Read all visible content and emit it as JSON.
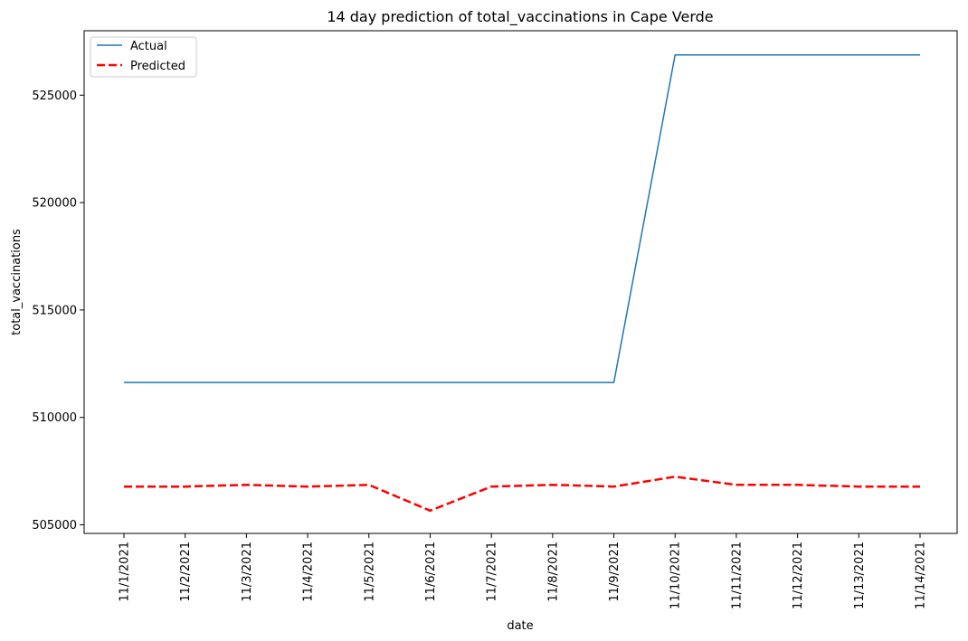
{
  "chart_data": {
    "type": "line",
    "title": "14 day prediction of total_vaccinations in Cape Verde",
    "xlabel": "date",
    "ylabel": "total_vaccinations",
    "categories": [
      "11/1/2021",
      "11/2/2021",
      "11/3/2021",
      "11/4/2021",
      "11/5/2021",
      "11/6/2021",
      "11/7/2021",
      "11/8/2021",
      "11/9/2021",
      "11/10/2021",
      "11/11/2021",
      "11/12/2021",
      "11/13/2021",
      "11/14/2021"
    ],
    "yticks": [
      505000,
      510000,
      515000,
      520000,
      525000
    ],
    "ylim": [
      504600,
      528000
    ],
    "grid": false,
    "legend_position": "top-left",
    "series": [
      {
        "name": "Actual",
        "color": "#1f77b4",
        "style": "solid",
        "values": [
          511626,
          511626,
          511626,
          511626,
          511626,
          511626,
          511626,
          511626,
          511626,
          526874,
          526874,
          526874,
          526874,
          526874
        ]
      },
      {
        "name": "Predicted",
        "color": "#ff0000",
        "style": "dashed",
        "values": [
          506780,
          506780,
          506860,
          506780,
          506860,
          505660,
          506780,
          506860,
          506780,
          507240,
          506860,
          506860,
          506780,
          506780
        ]
      }
    ]
  }
}
